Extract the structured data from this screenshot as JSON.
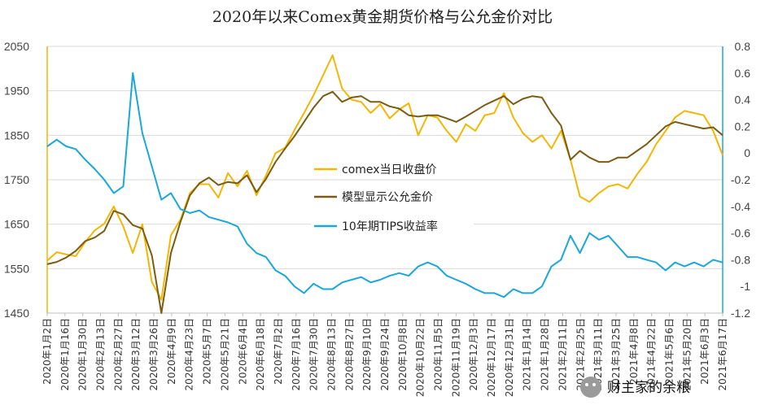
{
  "chart_data": {
    "type": "line",
    "title": "2020年以来Comex黄金期货价格与公允金价对比",
    "x_tick_labels": [
      "2020年1月2日",
      "2020年1月16日",
      "2020年1月30日",
      "2020年2月13日",
      "2020年2月27日",
      "2020年3月12日",
      "2020年3月26日",
      "2020年4月9日",
      "2020年4月23日",
      "2020年5月7日",
      "2020年5月21日",
      "2020年6月4日",
      "2020年6月18日",
      "2020年7月2日",
      "2020年7月16日",
      "2020年7月30日",
      "2020年8月13日",
      "2020年8月27日",
      "2020年9月10日",
      "2020年9月24日",
      "2020年10月8日",
      "2020年10月22日",
      "2020年11月5日",
      "2020年11月19日",
      "2020年12月3日",
      "2020年12月17日",
      "2020年12月31日",
      "2021年1月14日",
      "2021年1月28日",
      "2021年2月11日",
      "2021年2月25日",
      "2021年3月11日",
      "2021年3月25日",
      "2021年4月8日",
      "2021年4月22日",
      "2021年5月6日",
      "2021年5月20日",
      "2021年6月3日",
      "2021年6月17日"
    ],
    "y_left": {
      "min": 1450,
      "max": 2050,
      "ticks": [
        "1450",
        "1550",
        "1650",
        "1750",
        "1850",
        "1950",
        "2050"
      ]
    },
    "y_right": {
      "min": -1.2,
      "max": 0.8,
      "ticks": [
        "-1.2",
        "-1",
        "-0.8",
        "-0.6",
        "-0.4",
        "-0.2",
        "0",
        "0.2",
        "0.4",
        "0.6",
        "0.8"
      ]
    },
    "grid": true,
    "legend_position": "center",
    "series": [
      {
        "name": "comex当日收盘价",
        "axis": "left",
        "color": "#F2B705",
        "values": [
          1568,
          1587,
          1582,
          1578,
          1610,
          1636,
          1651,
          1690,
          1645,
          1585,
          1650,
          1520,
          1480,
          1625,
          1660,
          1720,
          1740,
          1740,
          1710,
          1765,
          1735,
          1770,
          1715,
          1760,
          1810,
          1822,
          1862,
          1900,
          1940,
          1985,
          2030,
          1955,
          1930,
          1925,
          1900,
          1920,
          1888,
          1908,
          1922,
          1850,
          1895,
          1890,
          1860,
          1835,
          1875,
          1860,
          1895,
          1900,
          1945,
          1890,
          1855,
          1835,
          1850,
          1820,
          1860,
          1795,
          1712,
          1700,
          1720,
          1735,
          1740,
          1730,
          1762,
          1790,
          1830,
          1860,
          1890,
          1905,
          1900,
          1895,
          1860,
          1805
        ]
      },
      {
        "name": "模型显示公允金价",
        "axis": "left",
        "color": "#7A5C12",
        "values": [
          1560,
          1565,
          1575,
          1590,
          1612,
          1620,
          1635,
          1680,
          1672,
          1648,
          1640,
          1580,
          1450,
          1585,
          1655,
          1715,
          1742,
          1755,
          1738,
          1745,
          1742,
          1760,
          1722,
          1752,
          1790,
          1820,
          1848,
          1880,
          1912,
          1938,
          1948,
          1925,
          1935,
          1938,
          1925,
          1925,
          1915,
          1910,
          1895,
          1892,
          1895,
          1895,
          1888,
          1880,
          1892,
          1905,
          1918,
          1928,
          1938,
          1920,
          1932,
          1938,
          1935,
          1900,
          1872,
          1795,
          1815,
          1800,
          1790,
          1790,
          1800,
          1800,
          1815,
          1830,
          1850,
          1870,
          1880,
          1875,
          1870,
          1865,
          1868,
          1850
        ]
      },
      {
        "name": "10年期TIPS收益率",
        "axis": "right",
        "color": "#1AA7D9",
        "values": [
          0.05,
          0.1,
          0.05,
          0.03,
          -0.05,
          -0.12,
          -0.2,
          -0.3,
          -0.25,
          0.6,
          0.15,
          -0.1,
          -0.35,
          -0.3,
          -0.42,
          -0.45,
          -0.43,
          -0.48,
          -0.5,
          -0.52,
          -0.55,
          -0.68,
          -0.75,
          -0.78,
          -0.88,
          -0.92,
          -1.0,
          -1.05,
          -0.98,
          -1.02,
          -1.02,
          -0.97,
          -0.95,
          -0.93,
          -0.97,
          -0.95,
          -0.92,
          -0.9,
          -0.92,
          -0.85,
          -0.82,
          -0.85,
          -0.92,
          -0.95,
          -0.98,
          -1.02,
          -1.05,
          -1.05,
          -1.08,
          -1.02,
          -1.05,
          -1.05,
          -1.0,
          -0.85,
          -0.8,
          -0.62,
          -0.75,
          -0.6,
          -0.65,
          -0.62,
          -0.7,
          -0.78,
          -0.78,
          -0.8,
          -0.82,
          -0.88,
          -0.82,
          -0.85,
          -0.82,
          -0.85,
          -0.8,
          -0.82
        ]
      }
    ]
  },
  "watermark": "财主家的余粮"
}
